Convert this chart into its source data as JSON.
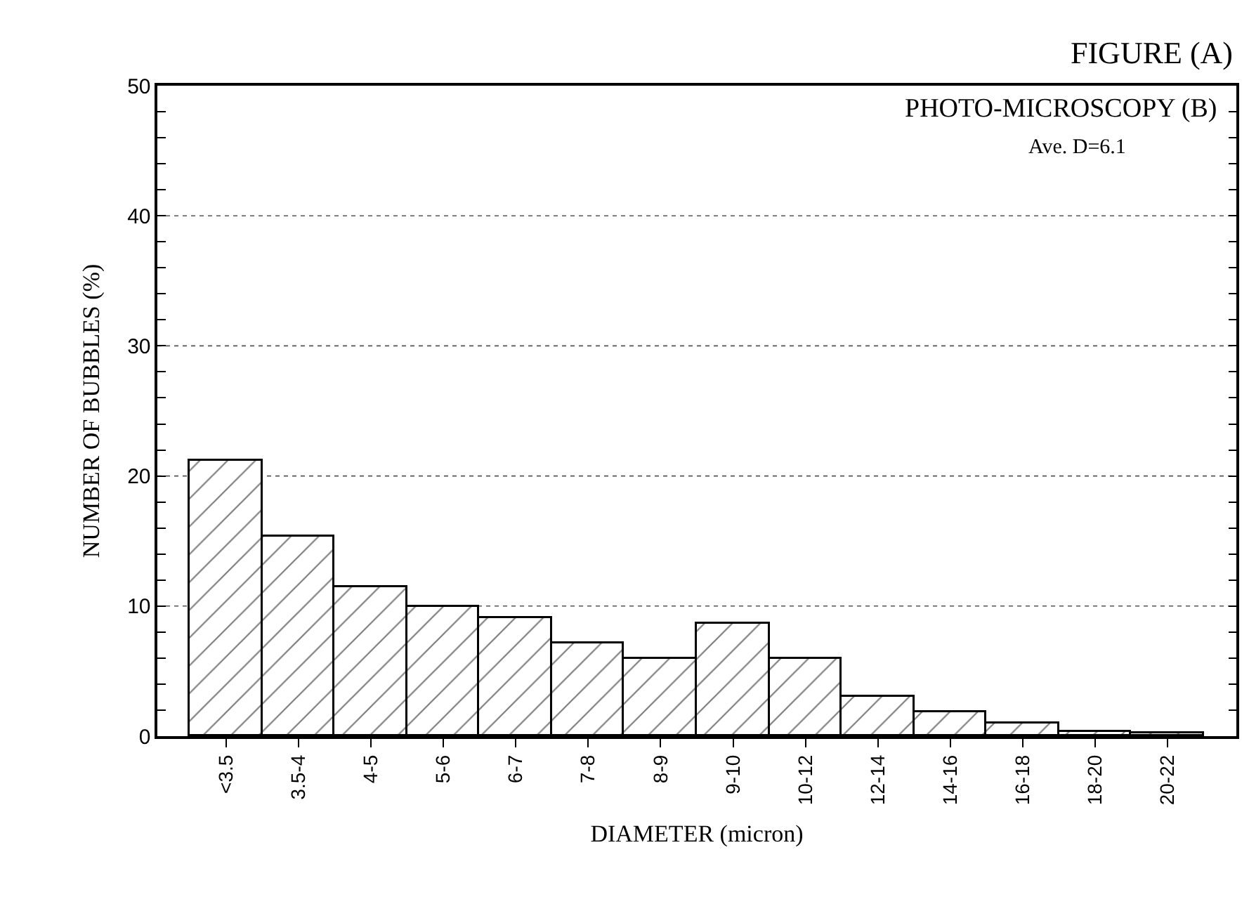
{
  "chart_data": {
    "type": "bar",
    "title": "FIGURE (A)",
    "xlabel": "DIAMETER (micron)",
    "ylabel": "NUMBER OF BUBBLES (%)",
    "annotations": [
      "PHOTO-MICROSCOPY (B)",
      "Ave. D=6.1"
    ],
    "categories": [
      "<3.5",
      "3.5-4",
      "4-5",
      "5-6",
      "6-7",
      "7-8",
      "8-9",
      "9-10",
      "10-12",
      "12-14",
      "14-16",
      "16-18",
      "18-20",
      "20-22"
    ],
    "values": [
      21.2,
      15.3,
      11.4,
      9.9,
      9.1,
      7.1,
      5.9,
      8.6,
      5.9,
      3.0,
      1.8,
      1.0,
      0.3,
      0.2
    ],
    "color": "#000000",
    "ylim": [
      0,
      50
    ],
    "yticks": [
      0,
      {
        "value": 2,
        "label": null
      },
      {
        "value": 4,
        "label": null
      },
      {
        "value": 6,
        "label": null
      },
      {
        "value": 8,
        "label": null
      },
      10,
      {
        "value": 12,
        "label": null
      },
      {
        "value": 14,
        "label": null
      },
      {
        "value": 16,
        "label": null
      },
      {
        "value": 18,
        "label": null
      },
      20,
      {
        "value": 22,
        "label": null
      },
      {
        "value": 24,
        "label": null
      },
      {
        "value": 26,
        "label": null
      },
      {
        "value": 28,
        "label": null
      },
      30,
      {
        "value": 32,
        "label": null
      },
      {
        "value": 34,
        "label": null
      },
      {
        "value": 36,
        "label": null
      },
      {
        "value": 38,
        "label": null
      },
      40,
      {
        "value": 42,
        "label": null
      },
      {
        "value": 44,
        "label": null
      },
      {
        "value": 46,
        "label": null
      },
      {
        "value": 48,
        "label": null
      },
      50
    ],
    "grid": "y",
    "legend": false
  }
}
